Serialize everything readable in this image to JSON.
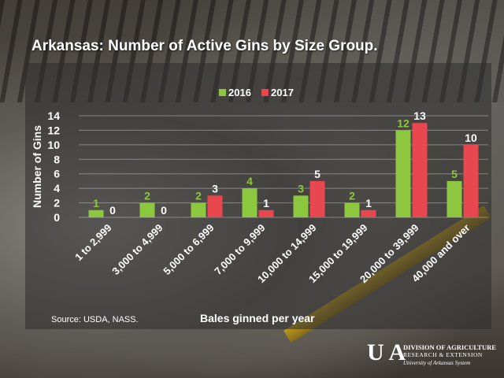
{
  "chart_data": {
    "type": "bar",
    "title": "Arkansas:  Number of Active Gins by Size Group.",
    "xlabel": "Bales ginned per year",
    "ylabel": "Number of Gins",
    "ylim": [
      0,
      14
    ],
    "yticks": [
      0,
      2,
      4,
      6,
      8,
      10,
      12,
      14
    ],
    "grid": true,
    "legend_position": "top",
    "categories": [
      "1 to 2,999",
      "3,000 to 4,999",
      "5,000 to 6,999",
      "7,000 to 9,999",
      "10,000 to 14,999",
      "15,000 to 19,999",
      "20,000 to 39,999",
      "40,000 and over"
    ],
    "series": [
      {
        "name": "2016",
        "color": "#8dc63f",
        "values": [
          1,
          2,
          2,
          4,
          3,
          2,
          12,
          5
        ]
      },
      {
        "name": "2017",
        "color": "#e8474f",
        "values": [
          0,
          0,
          3,
          1,
          5,
          1,
          13,
          10
        ]
      }
    ]
  },
  "source": "Source: USDA, NASS.",
  "logo": {
    "mark": "U A",
    "line1": "DIVISION OF AGRICULTURE",
    "line2": "RESEARCH & EXTENSION",
    "line3": "University of Arkansas System"
  }
}
